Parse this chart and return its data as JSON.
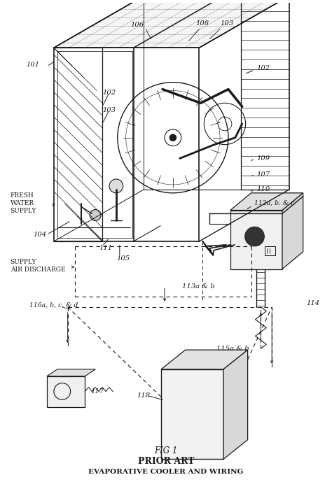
{
  "title_line1": "FIG 1",
  "title_line2": "PRIOR ART",
  "title_line3": "EVAPORATIVE COOLER AND WIRING",
  "bg_color": "#ffffff",
  "line_color": "#1a1a1a",
  "figsize": [
    4.74,
    6.89
  ],
  "dpi": 100
}
